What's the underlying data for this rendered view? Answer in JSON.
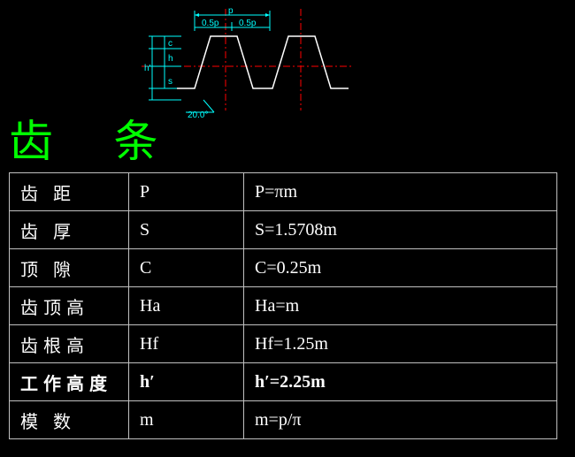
{
  "title": "齿   条",
  "diagram": {
    "tooth_color": "#ffffff",
    "dim_color": "#00ffff",
    "center_color": "#ff0000",
    "bg": "#000000",
    "labels": {
      "p": "p",
      "half_p_left": "0.5p",
      "half_p_right": "0.5p",
      "c": "c",
      "h": "h",
      "s": "s",
      "hprime": "h'",
      "angle": "20.0°"
    }
  },
  "table": {
    "border_color": "#c0c0c0",
    "text_color": "#ffffff",
    "bg": "#000000",
    "font_size": 20,
    "rows": [
      {
        "name": "齿 距",
        "sym": "P",
        "formula": "P=πm",
        "bold": false
      },
      {
        "name": "齿 厚",
        "sym": "S",
        "formula": "S=1.5708m",
        "bold": false
      },
      {
        "name": "顶 隙",
        "sym": "C",
        "formula": "C=0.25m",
        "bold": false
      },
      {
        "name": "齿顶高",
        "sym": "Ha",
        "formula": "Ha=m",
        "bold": false
      },
      {
        "name": "齿根高",
        "sym": "Hf",
        "formula": "Hf=1.25m",
        "bold": false
      },
      {
        "name": "工作高度",
        "sym": "h′",
        "formula": "h′=2.25m",
        "bold": true
      },
      {
        "name": "模 数",
        "sym": "m",
        "formula": "m=p/π",
        "bold": false
      }
    ]
  },
  "colors": {
    "title": "#00ff00",
    "bg": "#000000"
  }
}
